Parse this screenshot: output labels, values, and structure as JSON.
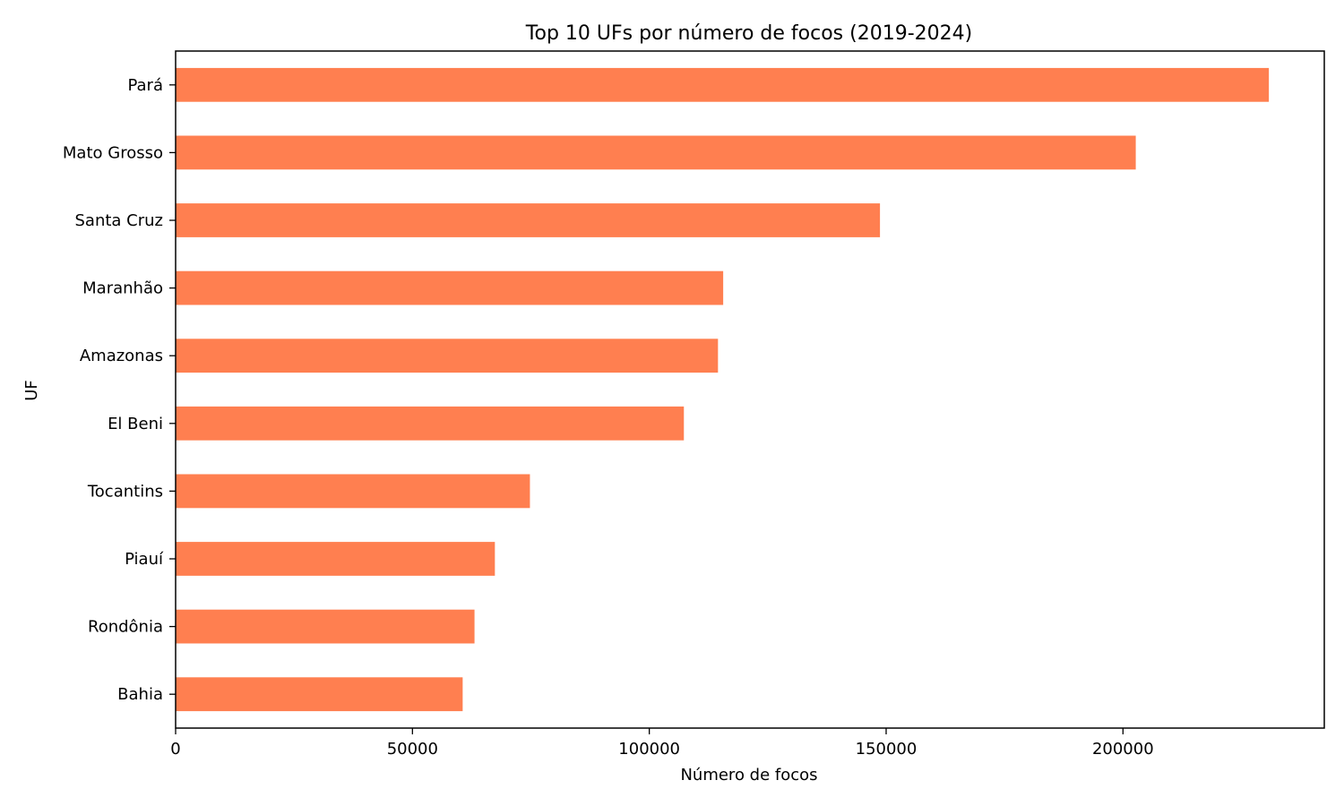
{
  "chart_data": {
    "type": "bar",
    "orientation": "horizontal",
    "title": "Top 10 UFs por número de focos (2019-2024)",
    "xlabel": "Número de focos",
    "ylabel": "UF",
    "categories": [
      "Pará",
      "Mato Grosso",
      "Santa Cruz",
      "Maranhão",
      "Amazonas",
      "El Beni",
      "Tocantins",
      "Piauí",
      "Rondônia",
      "Bahia"
    ],
    "values": [
      230800,
      202700,
      148700,
      115600,
      114500,
      107300,
      74800,
      67400,
      63100,
      60600
    ],
    "xlim": [
      0,
      242500
    ],
    "xticks": [
      0,
      50000,
      100000,
      150000,
      200000
    ],
    "bar_color": "#ff7f50",
    "grid": false
  }
}
